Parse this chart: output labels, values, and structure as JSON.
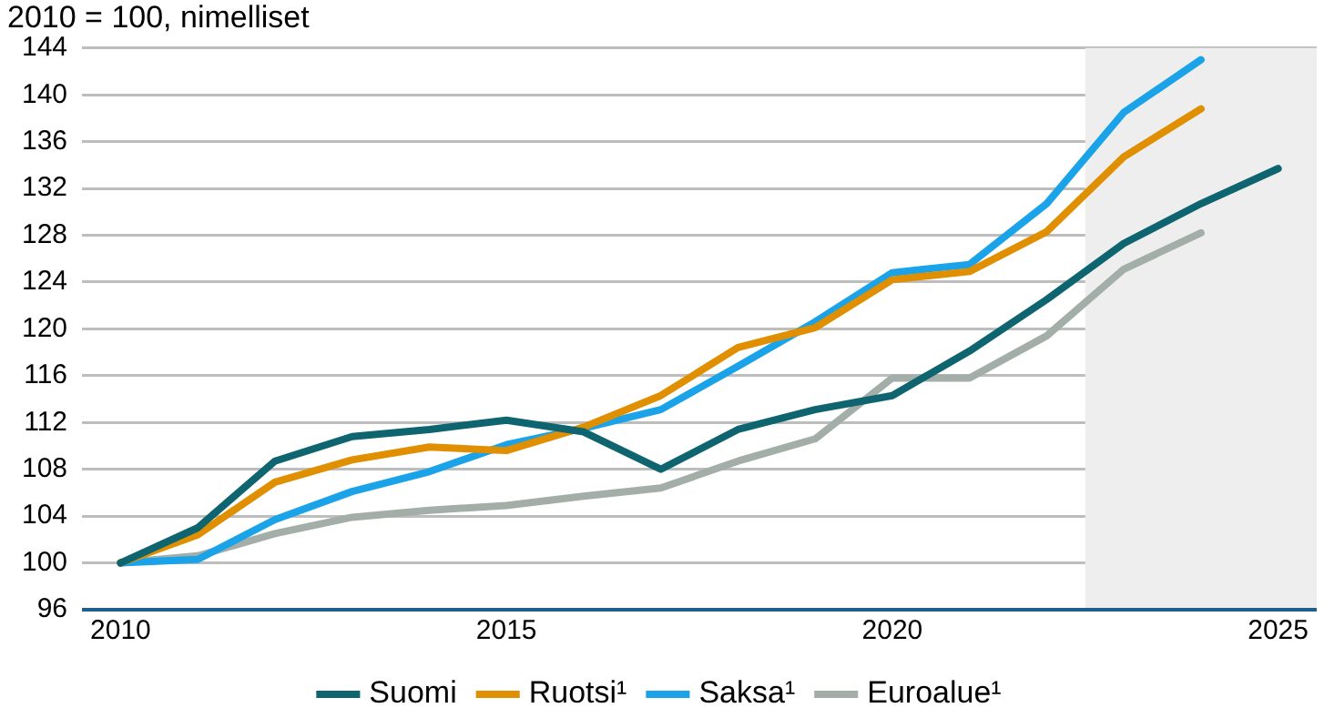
{
  "chart_data": {
    "type": "line",
    "title": "2010 = 100, nimelliset",
    "x": [
      2010,
      2011,
      2012,
      2013,
      2014,
      2015,
      2016,
      2017,
      2018,
      2019,
      2020,
      2021,
      2022,
      2023,
      2024,
      2025
    ],
    "series": [
      {
        "name": "Suomi",
        "color": "#0e6570",
        "values": [
          100,
          103.0,
          108.7,
          110.8,
          111.4,
          112.2,
          111.2,
          108.0,
          111.4,
          113.1,
          114.3,
          118.1,
          122.5,
          127.3,
          130.7,
          133.7
        ]
      },
      {
        "name": "Ruotsi¹",
        "color": "#e08f00",
        "values": [
          100,
          102.4,
          106.9,
          108.8,
          109.9,
          109.6,
          111.6,
          114.3,
          118.4,
          120.1,
          124.2,
          124.9,
          128.3,
          134.7,
          138.8,
          null
        ]
      },
      {
        "name": "Saksa¹",
        "color": "#1aa3e8",
        "values": [
          100,
          100.3,
          103.7,
          106.1,
          107.8,
          110.1,
          111.5,
          113.1,
          116.8,
          120.6,
          124.8,
          125.5,
          130.7,
          138.5,
          143.0,
          null
        ]
      },
      {
        "name": "Euroalue¹",
        "color": "#a3aea9",
        "values": [
          100,
          100.6,
          102.5,
          103.9,
          104.5,
          104.9,
          105.7,
          106.4,
          108.7,
          110.6,
          115.8,
          115.8,
          119.4,
          125.1,
          128.2,
          null
        ]
      }
    ],
    "xlim": [
      2009.5,
      2025.5
    ],
    "xticks": [
      2010,
      2015,
      2020,
      2025
    ],
    "ylim": [
      96,
      144
    ],
    "yticks": [
      96,
      100,
      104,
      108,
      112,
      116,
      120,
      124,
      128,
      132,
      136,
      140,
      144
    ],
    "bands": [
      {
        "axis": "x",
        "from": 2022.5,
        "to": 2025.5,
        "color": "#eeeeee"
      }
    ],
    "grid": "y",
    "legend": "bottom",
    "marker": "none",
    "line_style": "solid"
  }
}
